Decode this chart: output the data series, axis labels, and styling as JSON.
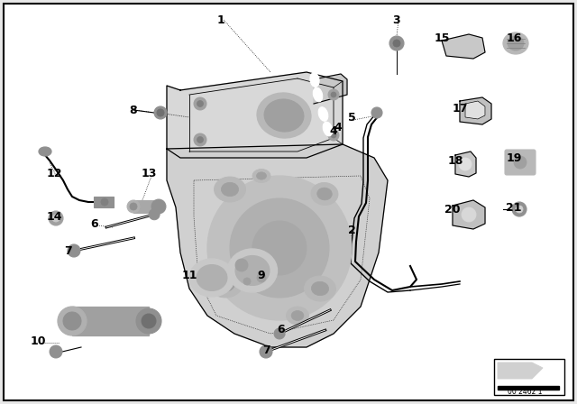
{
  "bg_color": "#e8e8e8",
  "diagram_bg": "#ffffff",
  "border_color": "#000000",
  "watermark_text": "00 2462 1",
  "labels": [
    [
      "1",
      245,
      22
    ],
    [
      "2",
      390,
      255
    ],
    [
      "3",
      440,
      22
    ],
    [
      "4",
      370,
      145
    ],
    [
      "5",
      390,
      130
    ],
    [
      "6",
      105,
      248
    ],
    [
      "7",
      75,
      278
    ],
    [
      "8",
      148,
      122
    ],
    [
      "9",
      290,
      305
    ],
    [
      "10",
      42,
      378
    ],
    [
      "11",
      210,
      305
    ],
    [
      "12",
      60,
      192
    ],
    [
      "13",
      165,
      192
    ],
    [
      "14",
      60,
      240
    ],
    [
      "15",
      490,
      42
    ],
    [
      "16",
      570,
      42
    ],
    [
      "17",
      510,
      120
    ],
    [
      "18",
      505,
      178
    ],
    [
      "19",
      570,
      175
    ],
    [
      "20",
      502,
      232
    ],
    [
      "21",
      570,
      230
    ],
    [
      "6",
      312,
      365
    ],
    [
      "7",
      296,
      388
    ]
  ]
}
